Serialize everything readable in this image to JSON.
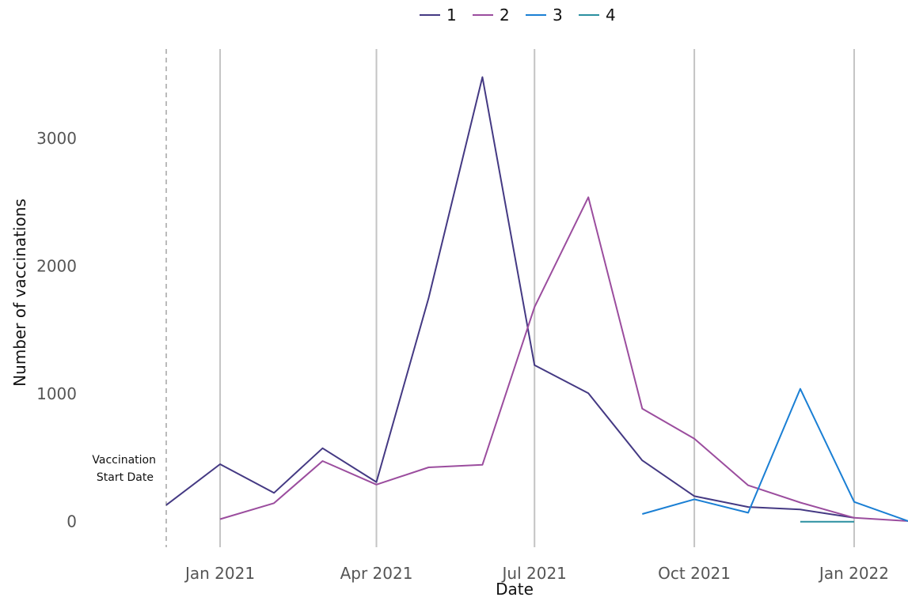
{
  "chart_data": {
    "type": "line",
    "xlabel": "Date",
    "ylabel": "Number of vaccinations",
    "x_ticks": [
      "2021-01-01",
      "2021-04-01",
      "2021-07-01",
      "2021-10-01",
      "2022-01-01"
    ],
    "x_tick_labels": [
      "Jan 2021",
      "Apr 2021",
      "Jul 2021",
      "Oct 2021",
      "Jan 2022"
    ],
    "y_ticks": [
      0,
      1000,
      2000,
      3000
    ],
    "y_tick_labels": [
      "0",
      "1000",
      "2000",
      "3000"
    ],
    "xlim": [
      "2020-12-01",
      "2022-02-01"
    ],
    "ylim": [
      -200,
      3700
    ],
    "grid": "vertical major gridlines",
    "legend_position": "top",
    "annotation": {
      "date": "2020-12-01",
      "label_line1": "Vaccination",
      "label_line2": "Start Date",
      "style": "dashed"
    },
    "series": [
      {
        "name": "1",
        "color": "#443983",
        "points": [
          [
            "2020-12-01",
            130
          ],
          [
            "2021-01-01",
            450
          ],
          [
            "2021-02-01",
            225
          ],
          [
            "2021-03-01",
            575
          ],
          [
            "2021-04-01",
            310
          ],
          [
            "2021-05-01",
            1750
          ],
          [
            "2021-06-01",
            3480
          ],
          [
            "2021-07-01",
            1225
          ],
          [
            "2021-08-01",
            1005
          ],
          [
            "2021-09-01",
            480
          ],
          [
            "2021-10-01",
            200
          ],
          [
            "2021-11-01",
            115
          ],
          [
            "2021-12-01",
            95
          ],
          [
            "2022-01-01",
            30
          ]
        ]
      },
      {
        "name": "2",
        "color": "#9b4d9e",
        "points": [
          [
            "2021-01-01",
            20
          ],
          [
            "2021-02-01",
            145
          ],
          [
            "2021-03-01",
            475
          ],
          [
            "2021-04-01",
            290
          ],
          [
            "2021-05-01",
            425
          ],
          [
            "2021-06-01",
            445
          ],
          [
            "2021-07-01",
            1680
          ],
          [
            "2021-08-01",
            2540
          ],
          [
            "2021-09-01",
            885
          ],
          [
            "2021-10-01",
            650
          ],
          [
            "2021-11-01",
            285
          ],
          [
            "2021-12-01",
            150
          ],
          [
            "2022-01-01",
            30
          ],
          [
            "2022-02-01",
            5
          ]
        ]
      },
      {
        "name": "3",
        "color": "#1a7fd4",
        "points": [
          [
            "2021-09-01",
            60
          ],
          [
            "2021-10-01",
            175
          ],
          [
            "2021-11-01",
            70
          ],
          [
            "2021-12-01",
            1040
          ],
          [
            "2022-01-01",
            155
          ],
          [
            "2022-02-01",
            5
          ]
        ]
      },
      {
        "name": "4",
        "color": "#2a8fa0",
        "points": [
          [
            "2021-12-01",
            0
          ],
          [
            "2022-01-01",
            0
          ]
        ]
      }
    ]
  }
}
